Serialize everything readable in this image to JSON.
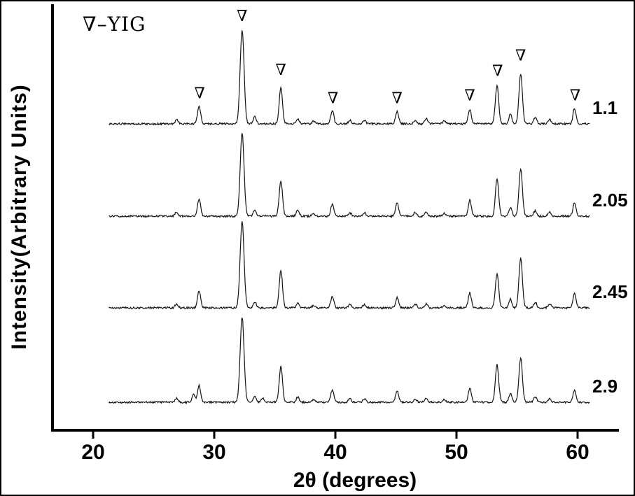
{
  "chart_data": {
    "type": "line",
    "title": "",
    "legend_marker": "∇",
    "legend_suffix": "–YIG",
    "phase": "YIG",
    "xlabel": "2θ (degrees)",
    "ylabel": "Intensity(Arbitrary Units)",
    "xlim": [
      20,
      62
    ],
    "x_ticks": [
      20,
      30,
      40,
      50,
      60
    ],
    "grid": false,
    "line_color": "#141414",
    "marker_glyph": "∇",
    "marked_peaks_2theta": [
      28.8,
      32.3,
      35.5,
      39.8,
      45.1,
      51.1,
      53.4,
      55.3,
      59.8
    ],
    "peaks": [
      [
        26.9,
        0.05
      ],
      [
        28.75,
        0.18
      ],
      [
        32.3,
        1.0
      ],
      [
        33.35,
        0.07
      ],
      [
        35.5,
        0.43
      ],
      [
        36.9,
        0.06
      ],
      [
        38.2,
        0.03
      ],
      [
        39.75,
        0.13
      ],
      [
        41.2,
        0.04
      ],
      [
        42.4,
        0.04
      ],
      [
        45.1,
        0.13
      ],
      [
        46.6,
        0.04
      ],
      [
        47.5,
        0.05
      ],
      [
        49.0,
        0.03
      ],
      [
        51.1,
        0.16
      ],
      [
        53.35,
        0.42
      ],
      [
        54.45,
        0.1
      ],
      [
        55.3,
        0.58
      ],
      [
        56.5,
        0.06
      ],
      [
        57.7,
        0.04
      ],
      [
        59.75,
        0.16
      ]
    ],
    "series": [
      {
        "name": "1.1"
      },
      {
        "name": "2.05"
      },
      {
        "name": "2.45"
      },
      {
        "name": "2.9",
        "extra_peaks": [
          [
            28.3,
            0.09
          ],
          [
            34.0,
            0.05
          ]
        ]
      }
    ]
  }
}
